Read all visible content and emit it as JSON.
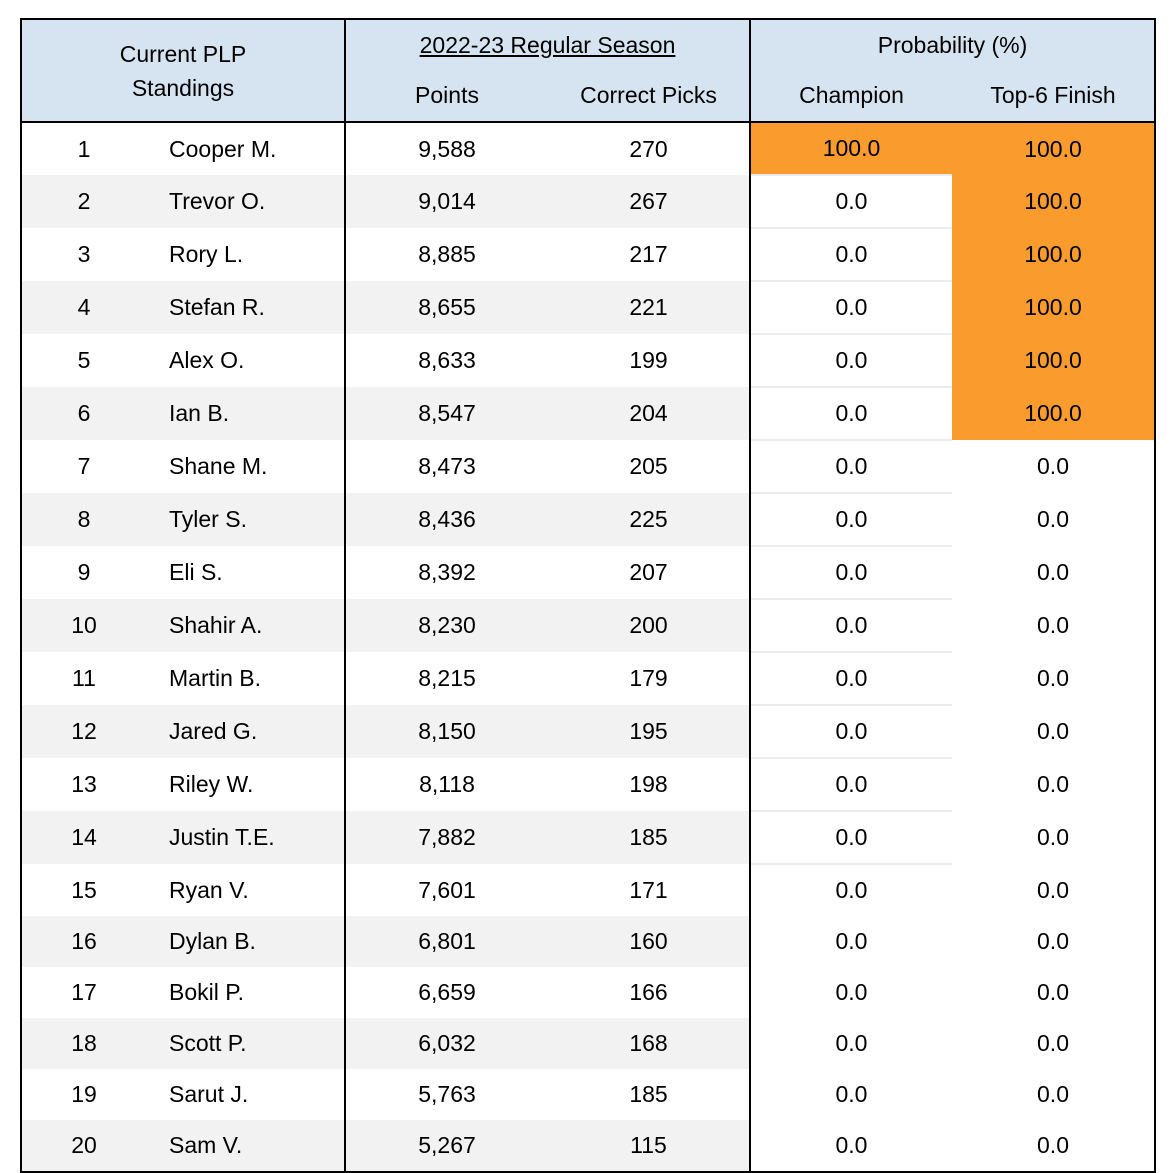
{
  "colors": {
    "header_bg": "#d6e4f2",
    "highlight": "#f99b2d",
    "stripe": "#f2f2f2"
  },
  "header": {
    "standings": "Current PLP Standings",
    "season": "2022-23 Regular Season",
    "probability": "Probability (%)",
    "points": "Points",
    "correct_picks": "Correct Picks",
    "champion": "Champion",
    "top6": "Top-6 Finish"
  },
  "rows": [
    {
      "rank": "1",
      "name": "Cooper M.",
      "points": "9,588",
      "picks": "270",
      "champion": "100.0",
      "top6": "100.0"
    },
    {
      "rank": "2",
      "name": "Trevor O.",
      "points": "9,014",
      "picks": "267",
      "champion": "0.0",
      "top6": "100.0"
    },
    {
      "rank": "3",
      "name": "Rory L.",
      "points": "8,885",
      "picks": "217",
      "champion": "0.0",
      "top6": "100.0"
    },
    {
      "rank": "4",
      "name": "Stefan R.",
      "points": "8,655",
      "picks": "221",
      "champion": "0.0",
      "top6": "100.0"
    },
    {
      "rank": "5",
      "name": "Alex O.",
      "points": "8,633",
      "picks": "199",
      "champion": "0.0",
      "top6": "100.0"
    },
    {
      "rank": "6",
      "name": "Ian B.",
      "points": "8,547",
      "picks": "204",
      "champion": "0.0",
      "top6": "100.0"
    },
    {
      "rank": "7",
      "name": "Shane M.",
      "points": "8,473",
      "picks": "205",
      "champion": "0.0",
      "top6": "0.0"
    },
    {
      "rank": "8",
      "name": "Tyler S.",
      "points": "8,436",
      "picks": "225",
      "champion": "0.0",
      "top6": "0.0"
    },
    {
      "rank": "9",
      "name": "Eli S.",
      "points": "8,392",
      "picks": "207",
      "champion": "0.0",
      "top6": "0.0"
    },
    {
      "rank": "10",
      "name": "Shahir A.",
      "points": "8,230",
      "picks": "200",
      "champion": "0.0",
      "top6": "0.0"
    },
    {
      "rank": "11",
      "name": "Martin B.",
      "points": "8,215",
      "picks": "179",
      "champion": "0.0",
      "top6": "0.0"
    },
    {
      "rank": "12",
      "name": "Jared G.",
      "points": "8,150",
      "picks": "195",
      "champion": "0.0",
      "top6": "0.0"
    },
    {
      "rank": "13",
      "name": "Riley W.",
      "points": "8,118",
      "picks": "198",
      "champion": "0.0",
      "top6": "0.0"
    },
    {
      "rank": "14",
      "name": "Justin T.E.",
      "points": "7,882",
      "picks": "185",
      "champion": "0.0",
      "top6": "0.0"
    },
    {
      "rank": "15",
      "name": "Ryan V.",
      "points": "7,601",
      "picks": "171",
      "champion": "0.0",
      "top6": "0.0"
    },
    {
      "rank": "16",
      "name": "Dylan B.",
      "points": "6,801",
      "picks": "160",
      "champion": "0.0",
      "top6": "0.0"
    },
    {
      "rank": "17",
      "name": "Bokil P.",
      "points": "6,659",
      "picks": "166",
      "champion": "0.0",
      "top6": "0.0"
    },
    {
      "rank": "18",
      "name": "Scott P.",
      "points": "6,032",
      "picks": "168",
      "champion": "0.0",
      "top6": "0.0"
    },
    {
      "rank": "19",
      "name": "Sarut J.",
      "points": "5,763",
      "picks": "185",
      "champion": "0.0",
      "top6": "0.0"
    },
    {
      "rank": "20",
      "name": "Sam V.",
      "points": "5,267",
      "picks": "115",
      "champion": "0.0",
      "top6": "0.0"
    }
  ]
}
